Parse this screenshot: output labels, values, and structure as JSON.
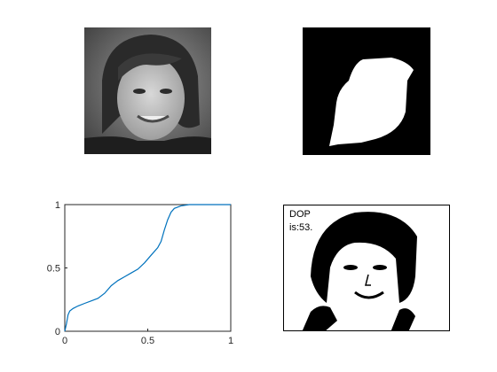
{
  "panels": {
    "top_left": {
      "icon": "grayscale-portrait-image"
    },
    "top_right": {
      "icon": "binary-mask-image"
    },
    "bottom_right": {
      "icon": "binarized-portrait-image",
      "annotation_line1": "DOP",
      "annotation_line2": "is:53."
    }
  },
  "chart_data": {
    "type": "line",
    "title": "",
    "xlabel": "",
    "ylabel": "",
    "xlim": [
      0,
      1
    ],
    "ylim": [
      0,
      1
    ],
    "grid": false,
    "xticks": [
      "0",
      "0.5",
      "1"
    ],
    "yticks": [
      "0",
      "0.5",
      "1"
    ],
    "series": [
      {
        "color": "#0072bd",
        "x": [
          0,
          0.01,
          0.02,
          0.03,
          0.05,
          0.08,
          0.12,
          0.16,
          0.2,
          0.24,
          0.28,
          0.32,
          0.36,
          0.4,
          0.44,
          0.48,
          0.52,
          0.56,
          0.58,
          0.6,
          0.62,
          0.64,
          0.66,
          0.7,
          0.75,
          0.8,
          0.9,
          1.0
        ],
        "y": [
          0,
          0.06,
          0.13,
          0.16,
          0.18,
          0.2,
          0.22,
          0.24,
          0.26,
          0.3,
          0.36,
          0.4,
          0.43,
          0.46,
          0.49,
          0.54,
          0.6,
          0.66,
          0.71,
          0.8,
          0.88,
          0.94,
          0.97,
          0.99,
          1.0,
          1.0,
          1.0,
          1.0
        ]
      }
    ]
  }
}
